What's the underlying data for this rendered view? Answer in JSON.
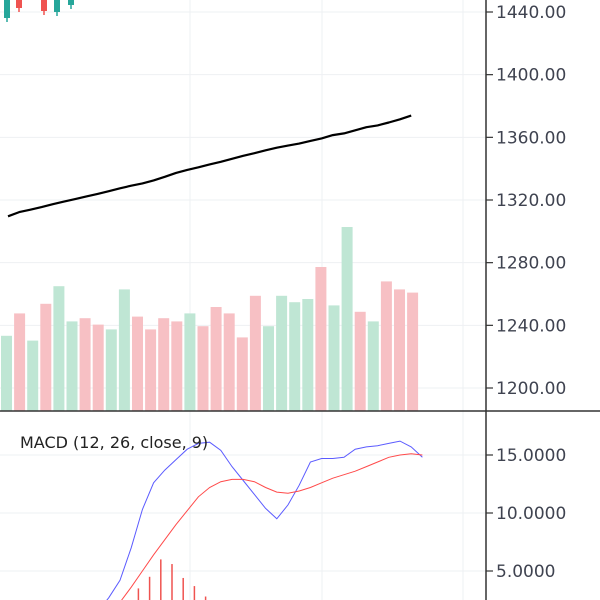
{
  "chart_data": [
    {
      "type": "candlestick-volume-ma",
      "panel": "price",
      "y_ticks": [
        "1440.00",
        "1400.00",
        "1360.00",
        "1320.00",
        "1280.00",
        "1240.00",
        "1200.00"
      ],
      "y_tick_values": [
        1440,
        1400,
        1360,
        1320,
        1280,
        1240,
        1200
      ],
      "ylim": [
        1186,
        1452
      ],
      "moving_average": [
        1309.6,
        1312.3,
        1313.8,
        1315.5,
        1317.3,
        1319.0,
        1320.6,
        1322.3,
        1323.9,
        1325.6,
        1327.5,
        1329.1,
        1330.6,
        1332.5,
        1334.8,
        1337.3,
        1339.2,
        1340.9,
        1342.7,
        1344.4,
        1346.3,
        1348.2,
        1349.9,
        1351.7,
        1353.4,
        1354.7,
        1356.0,
        1357.7,
        1359.3,
        1361.4,
        1362.5,
        1364.5,
        1366.5,
        1367.6,
        1369.5,
        1371.5,
        1373.9
      ],
      "volume": [
        {
          "v": 0.47,
          "dir": "up"
        },
        {
          "v": 0.61,
          "dir": "down"
        },
        {
          "v": 0.44,
          "dir": "up"
        },
        {
          "v": 0.67,
          "dir": "down"
        },
        {
          "v": 0.78,
          "dir": "up"
        },
        {
          "v": 0.56,
          "dir": "up"
        },
        {
          "v": 0.58,
          "dir": "down"
        },
        {
          "v": 0.54,
          "dir": "down"
        },
        {
          "v": 0.51,
          "dir": "up"
        },
        {
          "v": 0.76,
          "dir": "up"
        },
        {
          "v": 0.59,
          "dir": "down"
        },
        {
          "v": 0.51,
          "dir": "down"
        },
        {
          "v": 0.58,
          "dir": "down"
        },
        {
          "v": 0.56,
          "dir": "down"
        },
        {
          "v": 0.61,
          "dir": "up"
        },
        {
          "v": 0.53,
          "dir": "down"
        },
        {
          "v": 0.65,
          "dir": "down"
        },
        {
          "v": 0.61,
          "dir": "down"
        },
        {
          "v": 0.46,
          "dir": "down"
        },
        {
          "v": 0.72,
          "dir": "down"
        },
        {
          "v": 0.53,
          "dir": "up"
        },
        {
          "v": 0.72,
          "dir": "up"
        },
        {
          "v": 0.68,
          "dir": "up"
        },
        {
          "v": 0.7,
          "dir": "up"
        },
        {
          "v": 0.9,
          "dir": "down"
        },
        {
          "v": 0.66,
          "dir": "up"
        },
        {
          "v": 1.15,
          "dir": "up"
        },
        {
          "v": 0.62,
          "dir": "down"
        },
        {
          "v": 0.56,
          "dir": "up"
        },
        {
          "v": 0.81,
          "dir": "down"
        },
        {
          "v": 0.76,
          "dir": "down"
        },
        {
          "v": 0.74,
          "dir": "down"
        }
      ],
      "candles_top": [
        {
          "dir": "up"
        },
        {
          "dir": "down"
        },
        {
          "dir": "down"
        },
        {
          "dir": "up"
        },
        {
          "dir": "up"
        }
      ],
      "colors": {
        "up": "#26a69a",
        "down": "#ef5350",
        "up_volume": "#bfe6d4",
        "down_volume": "#f7c0c4",
        "ma": "#000000"
      }
    },
    {
      "type": "line",
      "panel": "macd",
      "legend": "MACD (12, 26, close, 9)",
      "y_ticks": [
        "15.0000",
        "10.0000",
        "5.0000"
      ],
      "y_tick_values": [
        15,
        10,
        5
      ],
      "ylim": [
        2.3,
        16.5
      ],
      "series": [
        {
          "role": "macd",
          "color": "#5b5bff",
          "x": [
            8,
            9,
            10,
            11,
            12,
            13,
            14,
            15,
            16,
            17,
            18,
            19,
            20,
            21,
            22,
            23,
            24,
            25,
            26,
            27,
            28,
            29,
            30,
            31,
            32,
            33,
            34,
            35,
            36,
            37
          ],
          "values": [
            1.5,
            2.7,
            4.2,
            7.0,
            10.3,
            12.6,
            13.7,
            14.6,
            15.5,
            16.0,
            16.1,
            15.4,
            14.0,
            12.8,
            11.6,
            10.4,
            9.5,
            10.7,
            12.4,
            14.4,
            14.7,
            14.7,
            14.8,
            15.5,
            15.7,
            15.8,
            16.0,
            16.2,
            15.7,
            14.8
          ]
        },
        {
          "role": "signal",
          "color": "#ff4a4a",
          "x": [
            10,
            11,
            12,
            13,
            14,
            15,
            16,
            17,
            18,
            19,
            20,
            21,
            22,
            23,
            24,
            25,
            26,
            27,
            28,
            29,
            30,
            31,
            32,
            33,
            34,
            35,
            36,
            37
          ],
          "values": [
            2.3,
            3.6,
            5.0,
            6.4,
            7.7,
            9.0,
            10.2,
            11.4,
            12.2,
            12.7,
            12.9,
            12.9,
            12.7,
            12.2,
            11.8,
            11.7,
            11.9,
            12.2,
            12.6,
            13.0,
            13.3,
            13.6,
            14.0,
            14.4,
            14.8,
            15.0,
            15.1,
            15.0
          ]
        }
      ],
      "histogram": {
        "color": "#ef5350",
        "x": [
          10,
          11,
          12,
          13,
          14,
          15,
          16,
          17,
          18,
          19
        ],
        "values": [
          0.5,
          1.5,
          3.2,
          4.2,
          5.7,
          5.3,
          4.1,
          3.4,
          2.5,
          1.5
        ]
      }
    }
  ]
}
